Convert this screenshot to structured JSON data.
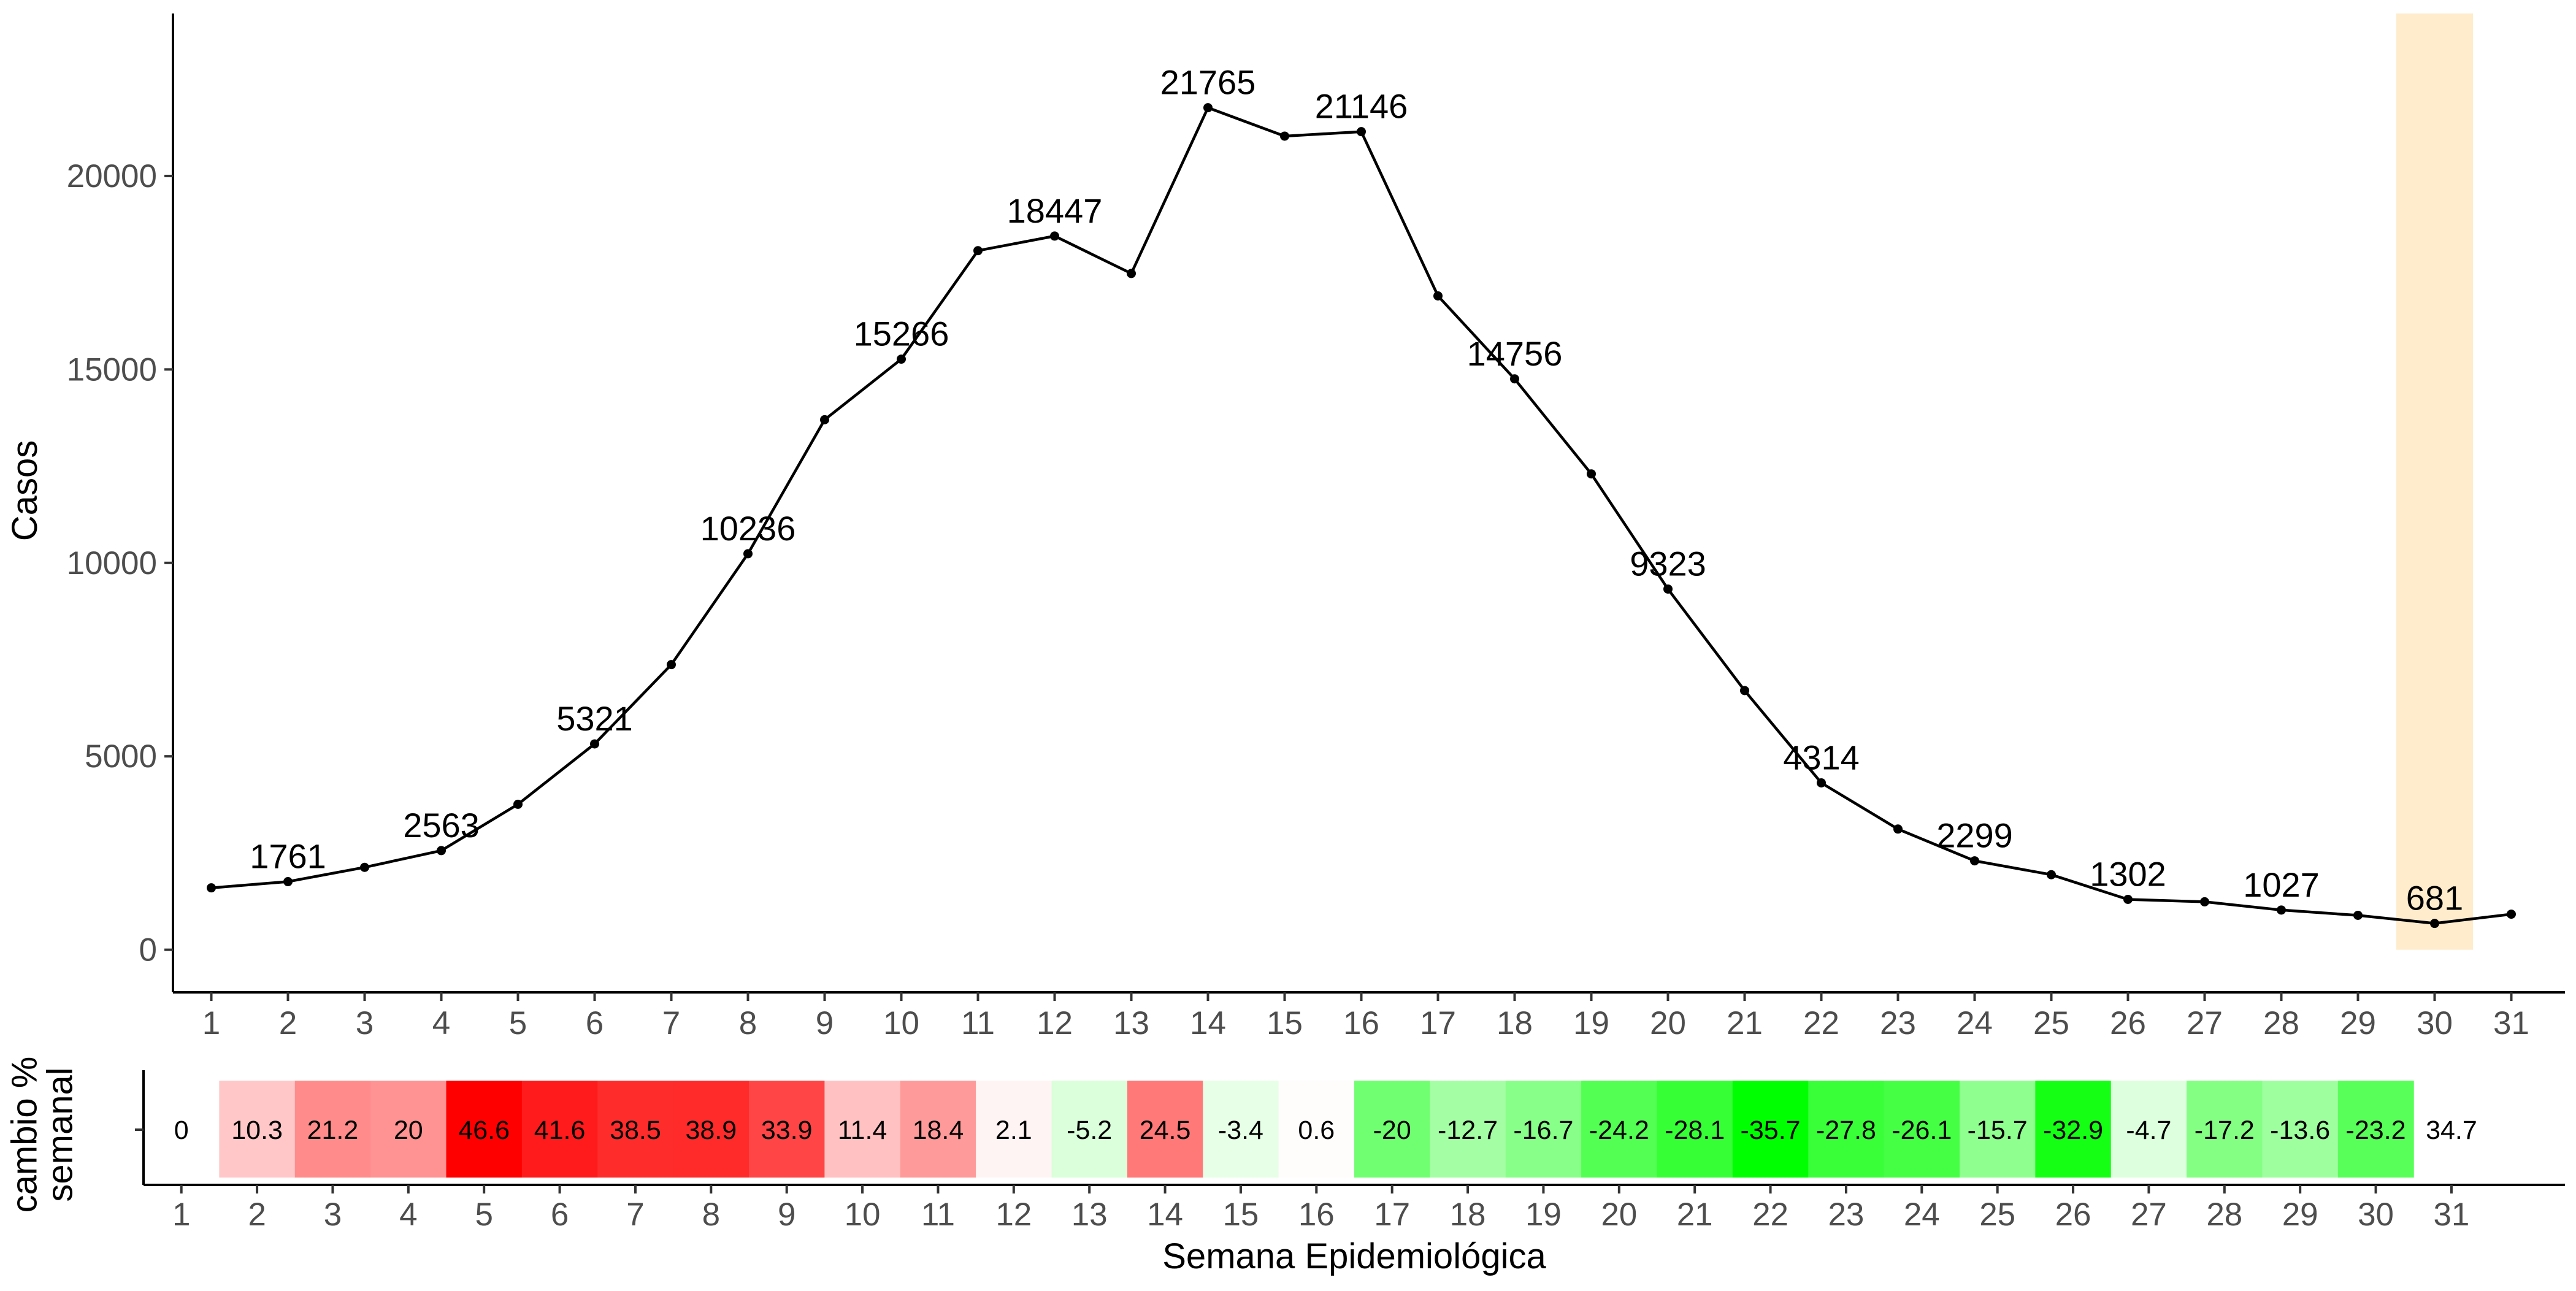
{
  "chart_data": [
    {
      "type": "line",
      "ylabel": "Casos",
      "xlim": [
        0.5,
        31.7
      ],
      "ylim": [
        -1100,
        24200
      ],
      "yticks": [
        0,
        5000,
        10000,
        15000,
        20000
      ],
      "x": [
        1,
        2,
        3,
        4,
        5,
        6,
        7,
        8,
        9,
        10,
        11,
        12,
        13,
        14,
        15,
        16,
        17,
        18,
        19,
        20,
        21,
        22,
        23,
        24,
        25,
        26,
        27,
        28,
        29,
        30,
        31
      ],
      "values": [
        1600,
        1761,
        2130,
        2563,
        3760,
        5321,
        7370,
        10236,
        13700,
        15266,
        18070,
        18447,
        17480,
        21765,
        21030,
        21146,
        16900,
        14756,
        12300,
        9323,
        6700,
        4314,
        3120,
        2299,
        1940,
        1302,
        1240,
        1027,
        890,
        681,
        920
      ],
      "labels": [
        "",
        "1761",
        "",
        "2563",
        "",
        "5321",
        "",
        "10236",
        "",
        "15266",
        "",
        "18447",
        "",
        "21765",
        "",
        "21146",
        "",
        "14756",
        "",
        "9323",
        "",
        "4314",
        "",
        "2299",
        "",
        "1302",
        "",
        "1027",
        "",
        "681",
        ""
      ],
      "highlight": {
        "x_from": 29.5,
        "x_to": 30.5,
        "color": "#ffeccc"
      },
      "line_color": "#000000",
      "grid": false
    },
    {
      "type": "heatmap",
      "ylabel": "cambio % semanal",
      "xlabel": "Semana Epidemiológica",
      "categories": [
        "1",
        "2",
        "3",
        "4",
        "5",
        "6",
        "7",
        "8",
        "9",
        "10",
        "11",
        "12",
        "13",
        "14",
        "15",
        "16",
        "17",
        "18",
        "19",
        "20",
        "21",
        "22",
        "23",
        "24",
        "25",
        "26",
        "27",
        "28",
        "29",
        "30",
        "31"
      ],
      "values": [
        0,
        10.3,
        21.2,
        20,
        46.6,
        41.6,
        38.5,
        38.9,
        33.9,
        11.4,
        18.4,
        2.1,
        -5.2,
        24.5,
        -3.4,
        0.6,
        -20,
        -12.7,
        -16.7,
        -24.2,
        -28.1,
        -35.7,
        -27.8,
        -26.1,
        -15.7,
        -32.9,
        -4.7,
        -17.2,
        -13.6,
        -23.2,
        34.7
      ],
      "labels": [
        "0",
        "10.3",
        "21.2",
        "20",
        "46.6",
        "41.6",
        "38.5",
        "38.9",
        "33.9",
        "11.4",
        "18.4",
        "2.1",
        "-5.2",
        "24.5",
        "-3.4",
        "0.6",
        "-20",
        "-12.7",
        "-16.7",
        "-24.2",
        "-28.1",
        "-35.7",
        "-27.8",
        "-26.1",
        "-15.7",
        "-32.9",
        "-4.7",
        "-17.2",
        "-13.6",
        "-23.2",
        "34.7"
      ],
      "colored": [
        false,
        true,
        true,
        true,
        true,
        true,
        true,
        true,
        true,
        true,
        true,
        true,
        true,
        true,
        true,
        true,
        true,
        true,
        true,
        true,
        true,
        true,
        true,
        true,
        true,
        true,
        true,
        true,
        true,
        true,
        false
      ],
      "positive_color": "#ff0000",
      "negative_color": "#00ff00",
      "max_positive": 46.6,
      "max_negative": 35.7,
      "xlim": [
        0.5,
        32.5
      ]
    }
  ]
}
